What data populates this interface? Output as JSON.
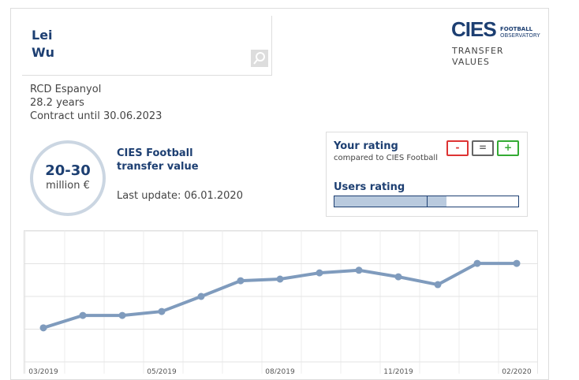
{
  "player": {
    "first_name": "Lei",
    "last_name": "Wu",
    "club": "RCD Espanyol",
    "age": "28.2 years",
    "contract": "Contract until 30.06.2023"
  },
  "logo": {
    "brand": "CIES",
    "line1": "FOOTBALL",
    "line2": "OBSERVATORY",
    "caption1": "TRANSFER",
    "caption2": "VALUES"
  },
  "value": {
    "range": "20-30",
    "unit": "million €",
    "title1": "CIES Football",
    "title2": "transfer value",
    "last_update": "Last update: 06.01.2020"
  },
  "rating": {
    "title": "Your rating",
    "subtitle": "compared to CIES Football",
    "buttons": [
      "-",
      "=",
      "+"
    ],
    "users_title": "Users rating",
    "users_fill": 61,
    "users_marker": 50
  },
  "chart_data": {
    "type": "line",
    "categories": [
      "03/2019",
      null,
      null,
      "05/2019",
      null,
      null,
      "08/2019",
      null,
      null,
      "11/2019",
      null,
      null,
      "02/2020"
    ],
    "values": [
      1.04,
      1.42,
      1.42,
      1.54,
      2.0,
      2.48,
      2.53,
      2.72,
      2.8,
      2.6,
      2.36,
      3.01,
      3.01
    ],
    "color": "#7f9bbd",
    "ylim": [
      0,
      4
    ],
    "yticks": [
      0,
      1,
      2,
      3,
      4
    ],
    "grid": true
  }
}
